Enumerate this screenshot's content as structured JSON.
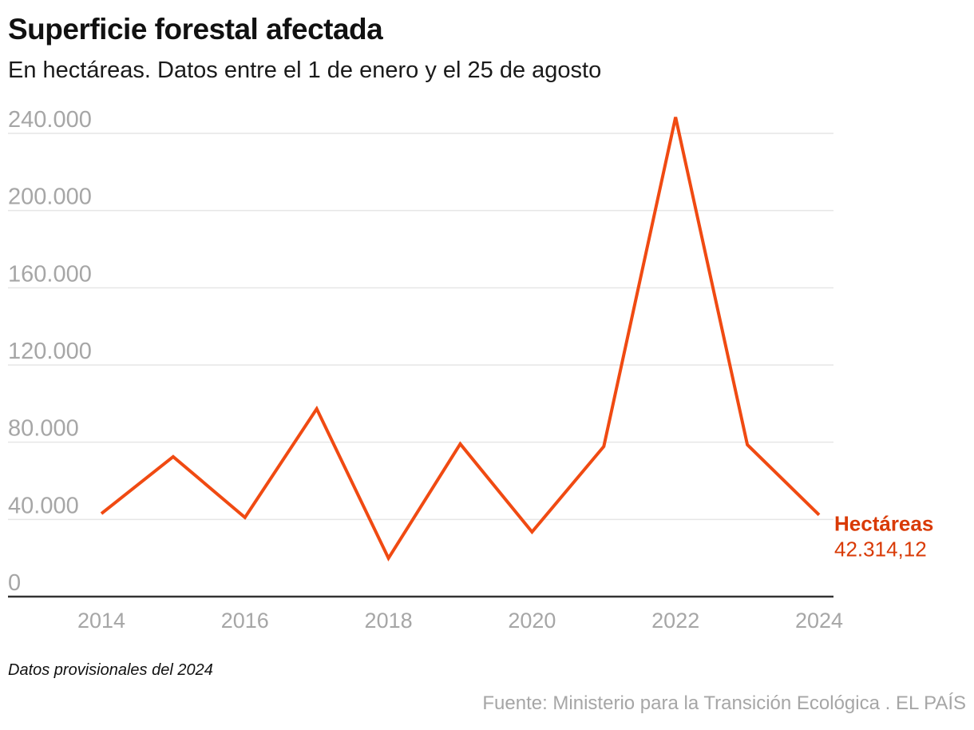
{
  "header": {
    "title": "Superficie forestal afectada",
    "subtitle": "En hectáreas. Datos entre el 1 de enero y el 25 de agosto"
  },
  "footer": {
    "note": "Datos provisionales del 2024",
    "source": "Fuente: Ministerio para la Transición Ecológica . EL PAÍS"
  },
  "colors": {
    "line": "#f04a12",
    "label": "#d93a06",
    "grid": "#e6e6e6",
    "axis": "#333333",
    "tick_text": "#a6a6a6"
  },
  "chart_data": {
    "type": "line",
    "title": "Superficie forestal afectada",
    "subtitle": "En hectáreas. Datos entre el 1 de enero y el 25 de agosto",
    "xlabel": "",
    "ylabel": "",
    "x": [
      2014,
      2015,
      2016,
      2017,
      2018,
      2019,
      2020,
      2021,
      2022,
      2023,
      2024
    ],
    "series": [
      {
        "name": "Hectáreas",
        "values": [
          43000,
          72500,
          41000,
          97300,
          19900,
          79100,
          33500,
          77800,
          248400,
          78700,
          42314.12
        ]
      }
    ],
    "end_label": {
      "name": "Hectáreas",
      "value_text": "42.314,12"
    },
    "xlim": [
      2014,
      2024
    ],
    "ylim": [
      0,
      240000
    ],
    "x_ticks": [
      2014,
      2016,
      2018,
      2020,
      2022,
      2024
    ],
    "x_tick_labels": [
      "2014",
      "2016",
      "2018",
      "2020",
      "2022",
      "2024"
    ],
    "y_ticks": [
      0,
      40000,
      80000,
      120000,
      160000,
      200000,
      240000
    ],
    "y_tick_labels": [
      "0",
      "40.000",
      "80.000",
      "120.000",
      "160.000",
      "200.000",
      "240.000"
    ],
    "grid": true,
    "legend": "end-of-line label (right)"
  }
}
